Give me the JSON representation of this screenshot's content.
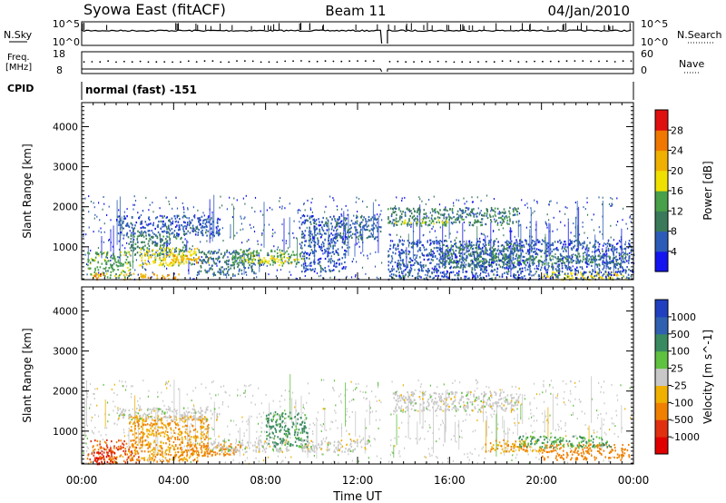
{
  "header": {
    "title": "Syowa East (fitACF)",
    "beam": "Beam 11",
    "date": "04/Jan/2010"
  },
  "top_panels": {
    "nsky_label": "N.Sky",
    "nsky_ticks": [
      "10^5",
      "10^0"
    ],
    "nsearch_label": "N.Search",
    "nsearch_ticks": [
      "10^5",
      "10^0"
    ],
    "freq_label_1": "Freq.",
    "freq_label_2": "[MHz]",
    "freq_ticks": [
      "18",
      "8"
    ],
    "nave_label": "Nave",
    "nave_ticks": [
      "60",
      "0"
    ],
    "cpid_label": "CPID",
    "cpid_value": "normal (fast) -151"
  },
  "chart_data": [
    {
      "type": "heatmap",
      "name": "power",
      "ylabel": "Slant Range [km]",
      "xlabel": "Time UT",
      "x_ticks": [
        "00:00",
        "04:00",
        "08:00",
        "12:00",
        "16:00",
        "20:00",
        "00:00"
      ],
      "x_range_hours": [
        0,
        24
      ],
      "y_ticks": [
        "1000",
        "2000",
        "3000",
        "4000"
      ],
      "ylim": [
        180,
        4600
      ],
      "colorbar": {
        "label": "Power [dB]",
        "ticks": [
          "4",
          "8",
          "12",
          "16",
          "20",
          "24",
          "28"
        ],
        "range": [
          0,
          32
        ],
        "colors": [
          "#1414f0",
          "#2c5cb8",
          "#3a7a5a",
          "#48a048",
          "#f0e000",
          "#f0b000",
          "#f07800",
          "#e01010"
        ]
      },
      "regions": [
        {
          "t": [
            0.2,
            2.2
          ],
          "r": [
            250,
            900
          ],
          "v": 14
        },
        {
          "t": [
            0.4,
            1.0
          ],
          "r": [
            200,
            350
          ],
          "v": 26
        },
        {
          "t": [
            1.8,
            4.2
          ],
          "r": [
            200,
            350
          ],
          "v": 22
        },
        {
          "t": [
            2.0,
            4.5
          ],
          "r": [
            800,
            1350
          ],
          "v": 10
        },
        {
          "t": [
            2.5,
            5.0
          ],
          "r": [
            550,
            1000
          ],
          "v": 18
        },
        {
          "t": [
            3.5,
            5.5
          ],
          "r": [
            600,
            800
          ],
          "v": 22
        },
        {
          "t": [
            5.0,
            7.5
          ],
          "r": [
            300,
            950
          ],
          "v": 8
        },
        {
          "t": [
            6.5,
            9.5
          ],
          "r": [
            550,
            950
          ],
          "v": 14
        },
        {
          "t": [
            7.0,
            9.8
          ],
          "r": [
            600,
            750
          ],
          "v": 18
        },
        {
          "t": [
            9.5,
            11.5
          ],
          "r": [
            400,
            1800
          ],
          "v": 6
        },
        {
          "t": [
            1.5,
            6.0
          ],
          "r": [
            1300,
            1800
          ],
          "v": 6
        },
        {
          "t": [
            11.0,
            13.0
          ],
          "r": [
            1200,
            1800
          ],
          "v": 8
        },
        {
          "t": [
            13.3,
            19.0
          ],
          "r": [
            1550,
            2000
          ],
          "v": 10
        },
        {
          "t": [
            13.5,
            16.0
          ],
          "r": [
            1600,
            1700
          ],
          "v": 16
        },
        {
          "t": [
            15.5,
            19.0
          ],
          "r": [
            500,
            1100
          ],
          "v": 10
        },
        {
          "t": [
            17.0,
            23.5
          ],
          "r": [
            600,
            800
          ],
          "v": 12
        },
        {
          "t": [
            20.0,
            23.8
          ],
          "r": [
            200,
            400
          ],
          "v": 18
        },
        {
          "t": [
            13.3,
            24.0
          ],
          "r": [
            200,
            1200
          ],
          "v": 6
        }
      ]
    },
    {
      "type": "heatmap",
      "name": "velocity",
      "ylabel": "Slant Range [km]",
      "xlabel": "Time UT",
      "x_ticks": [
        "00:00",
        "04:00",
        "08:00",
        "12:00",
        "16:00",
        "20:00",
        "00:00"
      ],
      "x_range_hours": [
        0,
        24
      ],
      "y_ticks": [
        "1000",
        "2000",
        "3000",
        "4000"
      ],
      "ylim": [
        180,
        4600
      ],
      "colorbar": {
        "label": "Velocity [m s^-1]",
        "ticks": [
          "1000",
          "500",
          "100",
          "25",
          "-25",
          "-100",
          "-500",
          "-1000"
        ],
        "colors": [
          "#2040c0",
          "#3060b0",
          "#3a8a60",
          "#60c040",
          "#c8c8c8",
          "#f0b000",
          "#f08000",
          "#e03010",
          "#e00000"
        ]
      },
      "regions": [
        {
          "t": [
            0.2,
            2.5
          ],
          "r": [
            200,
            800
          ],
          "v": -500
        },
        {
          "t": [
            0.5,
            1.5
          ],
          "r": [
            200,
            500
          ],
          "v": -1000
        },
        {
          "t": [
            2.0,
            5.5
          ],
          "r": [
            250,
            1400
          ],
          "v": -100
        },
        {
          "t": [
            4.0,
            7.0
          ],
          "r": [
            400,
            700
          ],
          "v": -200
        },
        {
          "t": [
            5.5,
            9.0
          ],
          "r": [
            500,
            800
          ],
          "v": 0
        },
        {
          "t": [
            8.0,
            9.8
          ],
          "r": [
            600,
            1500
          ],
          "v": 120
        },
        {
          "t": [
            9.5,
            12.5
          ],
          "r": [
            500,
            800
          ],
          "v": 0
        },
        {
          "t": [
            1.5,
            6.0
          ],
          "r": [
            1300,
            1600
          ],
          "v": 0
        },
        {
          "t": [
            13.5,
            19.0
          ],
          "r": [
            1500,
            2000
          ],
          "v": 0
        },
        {
          "t": [
            17.5,
            20.0
          ],
          "r": [
            500,
            800
          ],
          "v": -100
        },
        {
          "t": [
            20.0,
            23.8
          ],
          "r": [
            300,
            700
          ],
          "v": -200
        },
        {
          "t": [
            19.0,
            23.0
          ],
          "r": [
            600,
            900
          ],
          "v": 100
        }
      ]
    }
  ]
}
